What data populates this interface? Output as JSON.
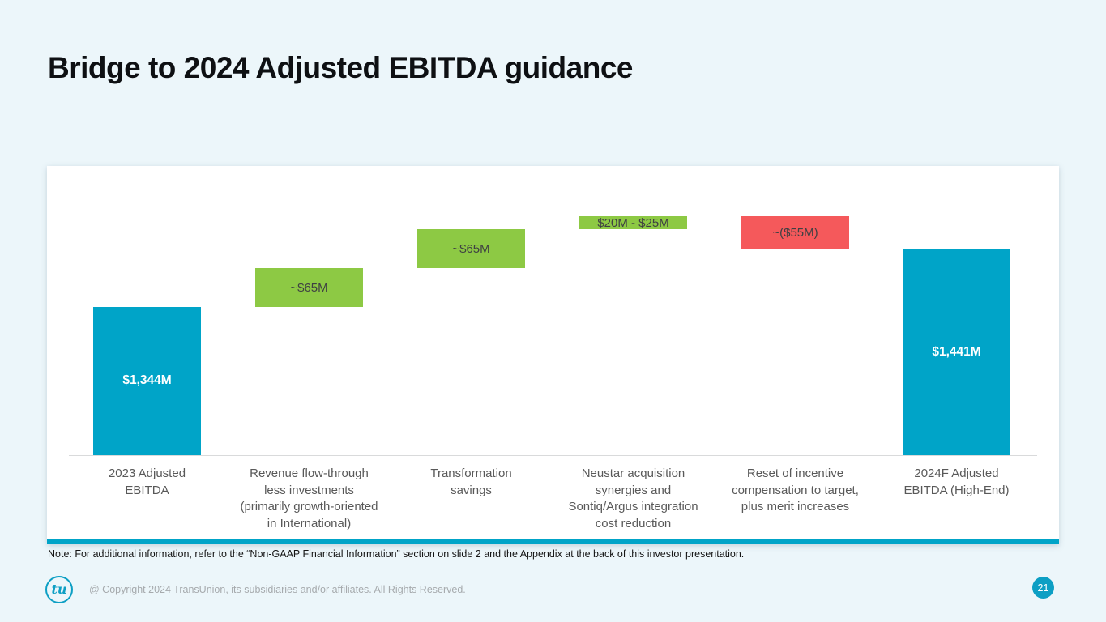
{
  "slide": {
    "title": "Bridge to 2024 Adjusted EBITDA guidance",
    "note": "Note: For additional information, refer to the “Non-GAAP Financial Information” section on slide 2 and the Appendix at the back of this investor presentation.",
    "copyright": "@ Copyright 2024 TransUnion, its subsidiaries and/or affiliates.  All Rights Reserved.",
    "page_number": "21",
    "logo_text": "tu"
  },
  "colors": {
    "teal": "#00A4C8",
    "green": "#8DC944",
    "red": "#F5595B",
    "background": "#ECF6FA",
    "accent_strip": "#00A4C8",
    "label_dark": "#3F4043",
    "label_gray": "#595959"
  },
  "chart_data": {
    "type": "bar",
    "subtype": "waterfall",
    "title": "Bridge to 2024 Adjusted EBITDA guidance",
    "unit": "USD millions",
    "axis": {
      "y_min": 1095,
      "truncated": true,
      "gridlines": false,
      "baseline_shown": true
    },
    "bars": [
      {
        "category_lines": [
          "2023 Adjusted",
          "EBITDA"
        ],
        "role": "total",
        "value": 1344,
        "value_label": "$1,344M",
        "color_key": "teal"
      },
      {
        "category_lines": [
          "Revenue flow-through",
          "less investments",
          "(primarily growth-oriented",
          "in International)"
        ],
        "role": "increase",
        "value": 65,
        "value_label": "~$65M",
        "color_key": "green"
      },
      {
        "category_lines": [
          "Transformation",
          "savings"
        ],
        "role": "increase",
        "value": 65,
        "value_label": "~$65M",
        "color_key": "green"
      },
      {
        "category_lines": [
          "Neustar acquisition",
          "synergies and",
          "Sontiq/Argus integration",
          "cost reduction"
        ],
        "role": "increase",
        "value": 22.5,
        "value_range": [
          20,
          25
        ],
        "value_label": "$20M - $25M",
        "color_key": "green"
      },
      {
        "category_lines": [
          "Reset of incentive",
          "compensation to target,",
          "plus merit increases"
        ],
        "role": "decrease",
        "value": 55,
        "value_label": "~($55M)",
        "color_key": "red"
      },
      {
        "category_lines": [
          "2024F Adjusted",
          "EBITDA (High-End)"
        ],
        "role": "total",
        "value": 1441,
        "value_label": "$1,441M",
        "color_key": "teal"
      }
    ]
  }
}
